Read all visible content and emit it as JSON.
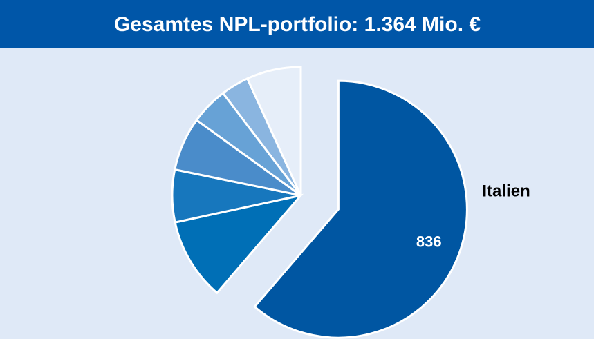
{
  "chart_data": {
    "type": "pie",
    "title": "Gesamtes NPL-portfolio: 1.364 Mio. €",
    "categories": [
      "Italien",
      null,
      null,
      null,
      null,
      null,
      null
    ],
    "values": [
      836,
      141,
      90,
      92,
      64,
      48,
      93
    ],
    "colors": [
      "#0056a2",
      "#006fb6",
      "#1777bd",
      "#4a8cca",
      "#67a2d6",
      "#8ab5e0",
      "#e6eef9"
    ]
  }
}
